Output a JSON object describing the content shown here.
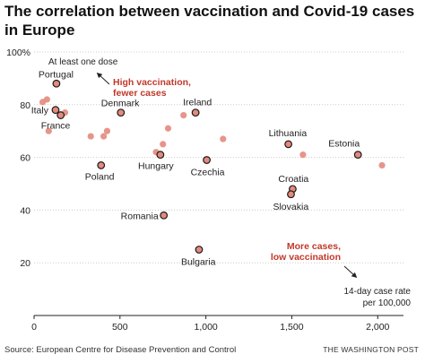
{
  "title": "The correlation between vaccination and Covid-19 cases in Europe",
  "source": "Source: European Centre for Disease Prevention and Control",
  "credit": "THE WASHINGTON POST",
  "colors": {
    "point": "#e38a7d",
    "highlight_point": "#e38a7d",
    "highlight_stroke": "#1a1a1a",
    "annotation": "#c0392b",
    "grid": "#cccccc",
    "axis": "#222222"
  },
  "chart_data": {
    "type": "scatter",
    "title": "The correlation between vaccination and Covid-19 cases in Europe",
    "xlabel": "14-day case rate per 100,000",
    "ylabel": "At least one dose",
    "xlim": [
      0,
      2150
    ],
    "ylim": [
      0,
      100
    ],
    "xticks": [
      0,
      500,
      1000,
      1500,
      2000
    ],
    "xtick_labels": [
      "0",
      "500",
      "1,000",
      "1,500",
      "2,000"
    ],
    "yticks": [
      20,
      40,
      60,
      80,
      100
    ],
    "ytick_labels": [
      "20",
      "40",
      "60",
      "80",
      "100%"
    ],
    "grid": "horizontal",
    "labeled_points": [
      {
        "label": "Portugal",
        "x": 130,
        "y": 88
      },
      {
        "label": "Italy",
        "x": 125,
        "y": 78
      },
      {
        "label": "France",
        "x": 155,
        "y": 76
      },
      {
        "label": "Denmark",
        "x": 505,
        "y": 77
      },
      {
        "label": "Ireland",
        "x": 940,
        "y": 77
      },
      {
        "label": "Poland",
        "x": 390,
        "y": 57
      },
      {
        "label": "Hungary",
        "x": 735,
        "y": 61
      },
      {
        "label": "Czechia",
        "x": 1005,
        "y": 59
      },
      {
        "label": "Lithuania",
        "x": 1480,
        "y": 65
      },
      {
        "label": "Estonia",
        "x": 1885,
        "y": 61
      },
      {
        "label": "Croatia",
        "x": 1505,
        "y": 48
      },
      {
        "label": "Slovakia",
        "x": 1495,
        "y": 46
      },
      {
        "label": "Romania",
        "x": 755,
        "y": 38
      },
      {
        "label": "Bulgaria",
        "x": 960,
        "y": 25
      }
    ],
    "other_points": [
      {
        "x": 50,
        "y": 81
      },
      {
        "x": 75,
        "y": 82
      },
      {
        "x": 85,
        "y": 70
      },
      {
        "x": 180,
        "y": 77
      },
      {
        "x": 330,
        "y": 68
      },
      {
        "x": 405,
        "y": 68
      },
      {
        "x": 425,
        "y": 70
      },
      {
        "x": 710,
        "y": 62
      },
      {
        "x": 750,
        "y": 65
      },
      {
        "x": 780,
        "y": 71
      },
      {
        "x": 870,
        "y": 76
      },
      {
        "x": 1100,
        "y": 67
      },
      {
        "x": 1565,
        "y": 61
      },
      {
        "x": 2025,
        "y": 57
      }
    ],
    "annotations": [
      {
        "text": "High vaccination, fewer cases"
      },
      {
        "text": "More cases, low vaccination"
      }
    ]
  }
}
